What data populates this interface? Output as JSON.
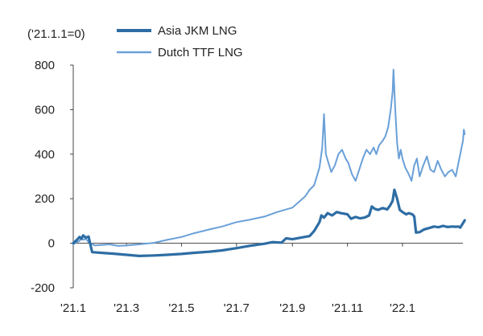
{
  "chart_data": {
    "type": "line",
    "unit_note": "('21.1.1=0)",
    "x_ticks": [
      "'21.1",
      "'21.3",
      "'21.5",
      "'21.7",
      "'21.9",
      "'21.11",
      "'22.1"
    ],
    "x_tick_dates": [
      "2021-01-01",
      "2021-03-01",
      "2021-05-01",
      "2021-07-01",
      "2021-09-01",
      "2021-11-01",
      "2022-01-01"
    ],
    "x_range": [
      "2021-01-01",
      "2022-03-15"
    ],
    "ylim": [
      -200,
      800
    ],
    "y_ticks": [
      -200,
      0,
      200,
      400,
      600,
      800
    ],
    "grid": false,
    "legend_position": "top-center",
    "series": [
      {
        "name": "Asia JKM LNG",
        "color": "#2E6DA4",
        "width": 3.2,
        "points": [
          [
            "2021-01-01",
            0
          ],
          [
            "2021-01-05",
            15
          ],
          [
            "2021-01-08",
            28
          ],
          [
            "2021-01-10",
            20
          ],
          [
            "2021-01-12",
            35
          ],
          [
            "2021-01-15",
            25
          ],
          [
            "2021-01-18",
            30
          ],
          [
            "2021-01-22",
            -40
          ],
          [
            "2021-02-01",
            -43
          ],
          [
            "2021-02-15",
            -47
          ],
          [
            "2021-03-01",
            -52
          ],
          [
            "2021-03-15",
            -57
          ],
          [
            "2021-04-01",
            -55
          ],
          [
            "2021-04-15",
            -52
          ],
          [
            "2021-05-01",
            -48
          ],
          [
            "2021-05-15",
            -43
          ],
          [
            "2021-06-01",
            -38
          ],
          [
            "2021-06-15",
            -32
          ],
          [
            "2021-07-01",
            -22
          ],
          [
            "2021-07-15",
            -12
          ],
          [
            "2021-08-01",
            -2
          ],
          [
            "2021-08-10",
            5
          ],
          [
            "2021-08-20",
            3
          ],
          [
            "2021-08-25",
            22
          ],
          [
            "2021-09-01",
            18
          ],
          [
            "2021-09-10",
            25
          ],
          [
            "2021-09-20",
            32
          ],
          [
            "2021-09-25",
            55
          ],
          [
            "2021-10-01",
            95
          ],
          [
            "2021-10-03",
            125
          ],
          [
            "2021-10-06",
            115
          ],
          [
            "2021-10-10",
            135
          ],
          [
            "2021-10-15",
            125
          ],
          [
            "2021-10-20",
            140
          ],
          [
            "2021-10-25",
            135
          ],
          [
            "2021-11-01",
            130
          ],
          [
            "2021-11-05",
            110
          ],
          [
            "2021-11-10",
            118
          ],
          [
            "2021-11-15",
            112
          ],
          [
            "2021-11-20",
            115
          ],
          [
            "2021-11-25",
            125
          ],
          [
            "2021-11-28",
            165
          ],
          [
            "2021-12-01",
            155
          ],
          [
            "2021-12-05",
            150
          ],
          [
            "2021-12-10",
            158
          ],
          [
            "2021-12-15",
            152
          ],
          [
            "2021-12-18",
            168
          ],
          [
            "2021-12-21",
            190
          ],
          [
            "2021-12-23",
            240
          ],
          [
            "2021-12-26",
            200
          ],
          [
            "2021-12-29",
            150
          ],
          [
            "2022-01-01",
            140
          ],
          [
            "2022-01-05",
            130
          ],
          [
            "2022-01-08",
            135
          ],
          [
            "2022-01-12",
            130
          ],
          [
            "2022-01-14",
            120
          ],
          [
            "2022-01-16",
            48
          ],
          [
            "2022-01-20",
            50
          ],
          [
            "2022-01-25",
            62
          ],
          [
            "2022-02-01",
            70
          ],
          [
            "2022-02-05",
            75
          ],
          [
            "2022-02-10",
            72
          ],
          [
            "2022-02-15",
            78
          ],
          [
            "2022-02-20",
            73
          ],
          [
            "2022-02-25",
            75
          ],
          [
            "2022-03-01",
            74
          ],
          [
            "2022-03-04",
            75
          ],
          [
            "2022-03-06",
            70
          ],
          [
            "2022-03-09",
            90
          ],
          [
            "2022-03-11",
            103
          ]
        ]
      },
      {
        "name": "Dutch TTF LNG",
        "color": "#6AA0D8",
        "width": 2,
        "points": [
          [
            "2021-01-01",
            -5
          ],
          [
            "2021-01-05",
            5
          ],
          [
            "2021-01-08",
            10
          ],
          [
            "2021-01-10",
            25
          ],
          [
            "2021-01-12",
            15
          ],
          [
            "2021-01-15",
            20
          ],
          [
            "2021-01-18",
            5
          ],
          [
            "2021-01-25",
            -10
          ],
          [
            "2021-02-01",
            -8
          ],
          [
            "2021-02-10",
            -5
          ],
          [
            "2021-02-20",
            -12
          ],
          [
            "2021-03-01",
            -10
          ],
          [
            "2021-03-15",
            -5
          ],
          [
            "2021-04-01",
            2
          ],
          [
            "2021-04-15",
            15
          ],
          [
            "2021-05-01",
            28
          ],
          [
            "2021-05-15",
            45
          ],
          [
            "2021-06-01",
            62
          ],
          [
            "2021-06-15",
            75
          ],
          [
            "2021-07-01",
            95
          ],
          [
            "2021-07-15",
            105
          ],
          [
            "2021-08-01",
            120
          ],
          [
            "2021-08-15",
            140
          ],
          [
            "2021-09-01",
            160
          ],
          [
            "2021-09-15",
            210
          ],
          [
            "2021-09-20",
            240
          ],
          [
            "2021-09-25",
            260
          ],
          [
            "2021-10-01",
            340
          ],
          [
            "2021-10-04",
            430
          ],
          [
            "2021-10-06",
            580
          ],
          [
            "2021-10-08",
            400
          ],
          [
            "2021-10-11",
            360
          ],
          [
            "2021-10-14",
            320
          ],
          [
            "2021-10-18",
            350
          ],
          [
            "2021-10-22",
            400
          ],
          [
            "2021-10-26",
            420
          ],
          [
            "2021-10-30",
            380
          ],
          [
            "2021-11-02",
            360
          ],
          [
            "2021-11-06",
            310
          ],
          [
            "2021-11-10",
            280
          ],
          [
            "2021-11-14",
            330
          ],
          [
            "2021-11-18",
            380
          ],
          [
            "2021-11-22",
            420
          ],
          [
            "2021-11-26",
            400
          ],
          [
            "2021-11-30",
            430
          ],
          [
            "2021-12-03",
            400
          ],
          [
            "2021-12-06",
            440
          ],
          [
            "2021-12-10",
            460
          ],
          [
            "2021-12-13",
            480
          ],
          [
            "2021-12-16",
            520
          ],
          [
            "2021-12-19",
            600
          ],
          [
            "2021-12-21",
            680
          ],
          [
            "2021-12-22",
            780
          ],
          [
            "2021-12-24",
            600
          ],
          [
            "2021-12-26",
            450
          ],
          [
            "2021-12-28",
            380
          ],
          [
            "2021-12-30",
            420
          ],
          [
            "2022-01-01",
            380
          ],
          [
            "2022-01-04",
            340
          ],
          [
            "2022-01-08",
            310
          ],
          [
            "2022-01-11",
            280
          ],
          [
            "2022-01-14",
            350
          ],
          [
            "2022-01-17",
            380
          ],
          [
            "2022-01-20",
            300
          ],
          [
            "2022-01-24",
            350
          ],
          [
            "2022-01-28",
            390
          ],
          [
            "2022-02-01",
            330
          ],
          [
            "2022-02-05",
            320
          ],
          [
            "2022-02-09",
            370
          ],
          [
            "2022-02-13",
            330
          ],
          [
            "2022-02-17",
            300
          ],
          [
            "2022-02-21",
            320
          ],
          [
            "2022-02-25",
            330
          ],
          [
            "2022-03-01",
            300
          ],
          [
            "2022-03-05",
            380
          ],
          [
            "2022-03-09",
            460
          ],
          [
            "2022-03-10",
            510
          ],
          [
            "2022-03-11",
            490
          ]
        ]
      }
    ]
  }
}
